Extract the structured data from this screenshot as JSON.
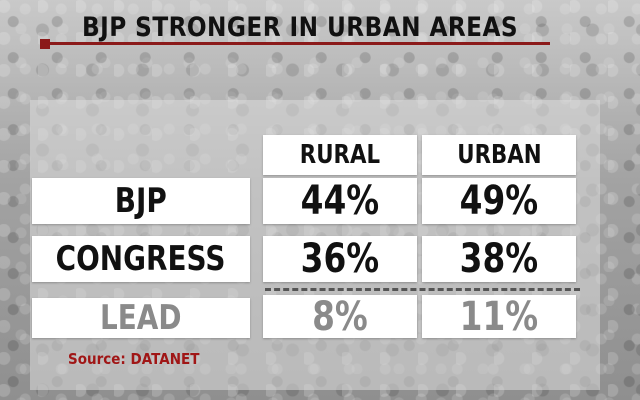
{
  "title": "BJP STRONGER IN URBAN AREAS",
  "table": {
    "columns": [
      "RURAL",
      "URBAN"
    ],
    "rows": [
      {
        "label": "BJP",
        "rural": "44%",
        "urban": "49%"
      },
      {
        "label": "CONGRESS",
        "rural": "36%",
        "urban": "38%"
      },
      {
        "label": "LEAD",
        "rural": "8%",
        "urban": "11%"
      }
    ]
  },
  "source": "Source: DATANET",
  "colors": {
    "accent": "#8b1a1a",
    "source_text": "#a01616"
  }
}
